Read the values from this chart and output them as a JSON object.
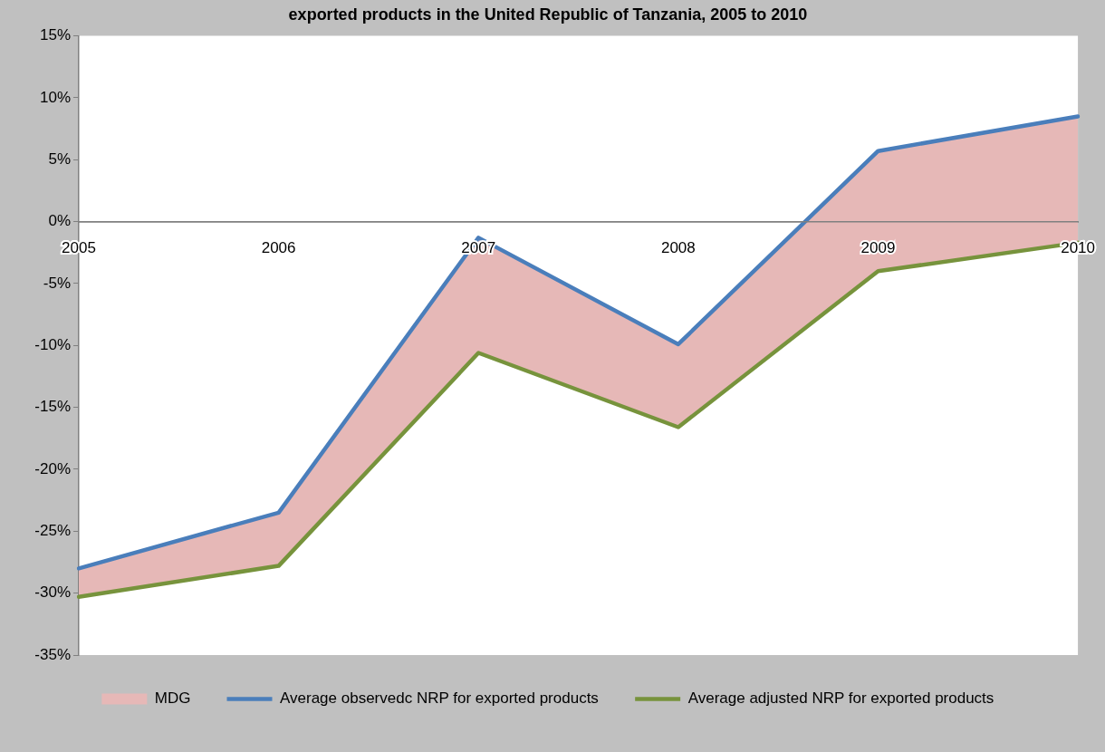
{
  "chart_data": {
    "type": "line",
    "title": "exported products in the United Republic of Tanzania, 2005 to 2010",
    "categories": [
      "2005",
      "2006",
      "2007",
      "2008",
      "2009",
      "2010"
    ],
    "series": [
      {
        "name": "MDG",
        "type": "area",
        "color": "#e6b8b7",
        "values": [
          null,
          null,
          null,
          null,
          null,
          null
        ],
        "lower": [
          -30.3,
          -27.8,
          -10.6,
          -16.6,
          -4.0,
          -1.7
        ],
        "upper": [
          -28.0,
          -23.5,
          -1.3,
          -9.9,
          5.7,
          8.5
        ]
      },
      {
        "name": "Average observedc NRP for exported products",
        "color": "#4a7ebb",
        "values": [
          -28.0,
          -23.5,
          -1.3,
          -9.9,
          5.7,
          8.5
        ]
      },
      {
        "name": "Average adjusted NRP for exported products",
        "color": "#77933c",
        "values": [
          -30.3,
          -27.8,
          -10.6,
          -16.6,
          -4.0,
          -1.7
        ]
      }
    ],
    "ylim": [
      -35,
      15
    ],
    "yticks": [
      {
        "value": -35,
        "label": "-35%"
      },
      {
        "value": -30,
        "label": "-30%"
      },
      {
        "value": -25,
        "label": "-25%"
      },
      {
        "value": -20,
        "label": "-20%"
      },
      {
        "value": -15,
        "label": "-15%"
      },
      {
        "value": -10,
        "label": "-10%"
      },
      {
        "value": -5,
        "label": "-5%"
      },
      {
        "value": 0,
        "label": "0%"
      },
      {
        "value": 5,
        "label": "5%"
      },
      {
        "value": 10,
        "label": "10%"
      },
      {
        "value": 15,
        "label": "15%"
      }
    ],
    "grid": false,
    "legend": "bottom",
    "marker": "none",
    "line_style": "solid"
  }
}
